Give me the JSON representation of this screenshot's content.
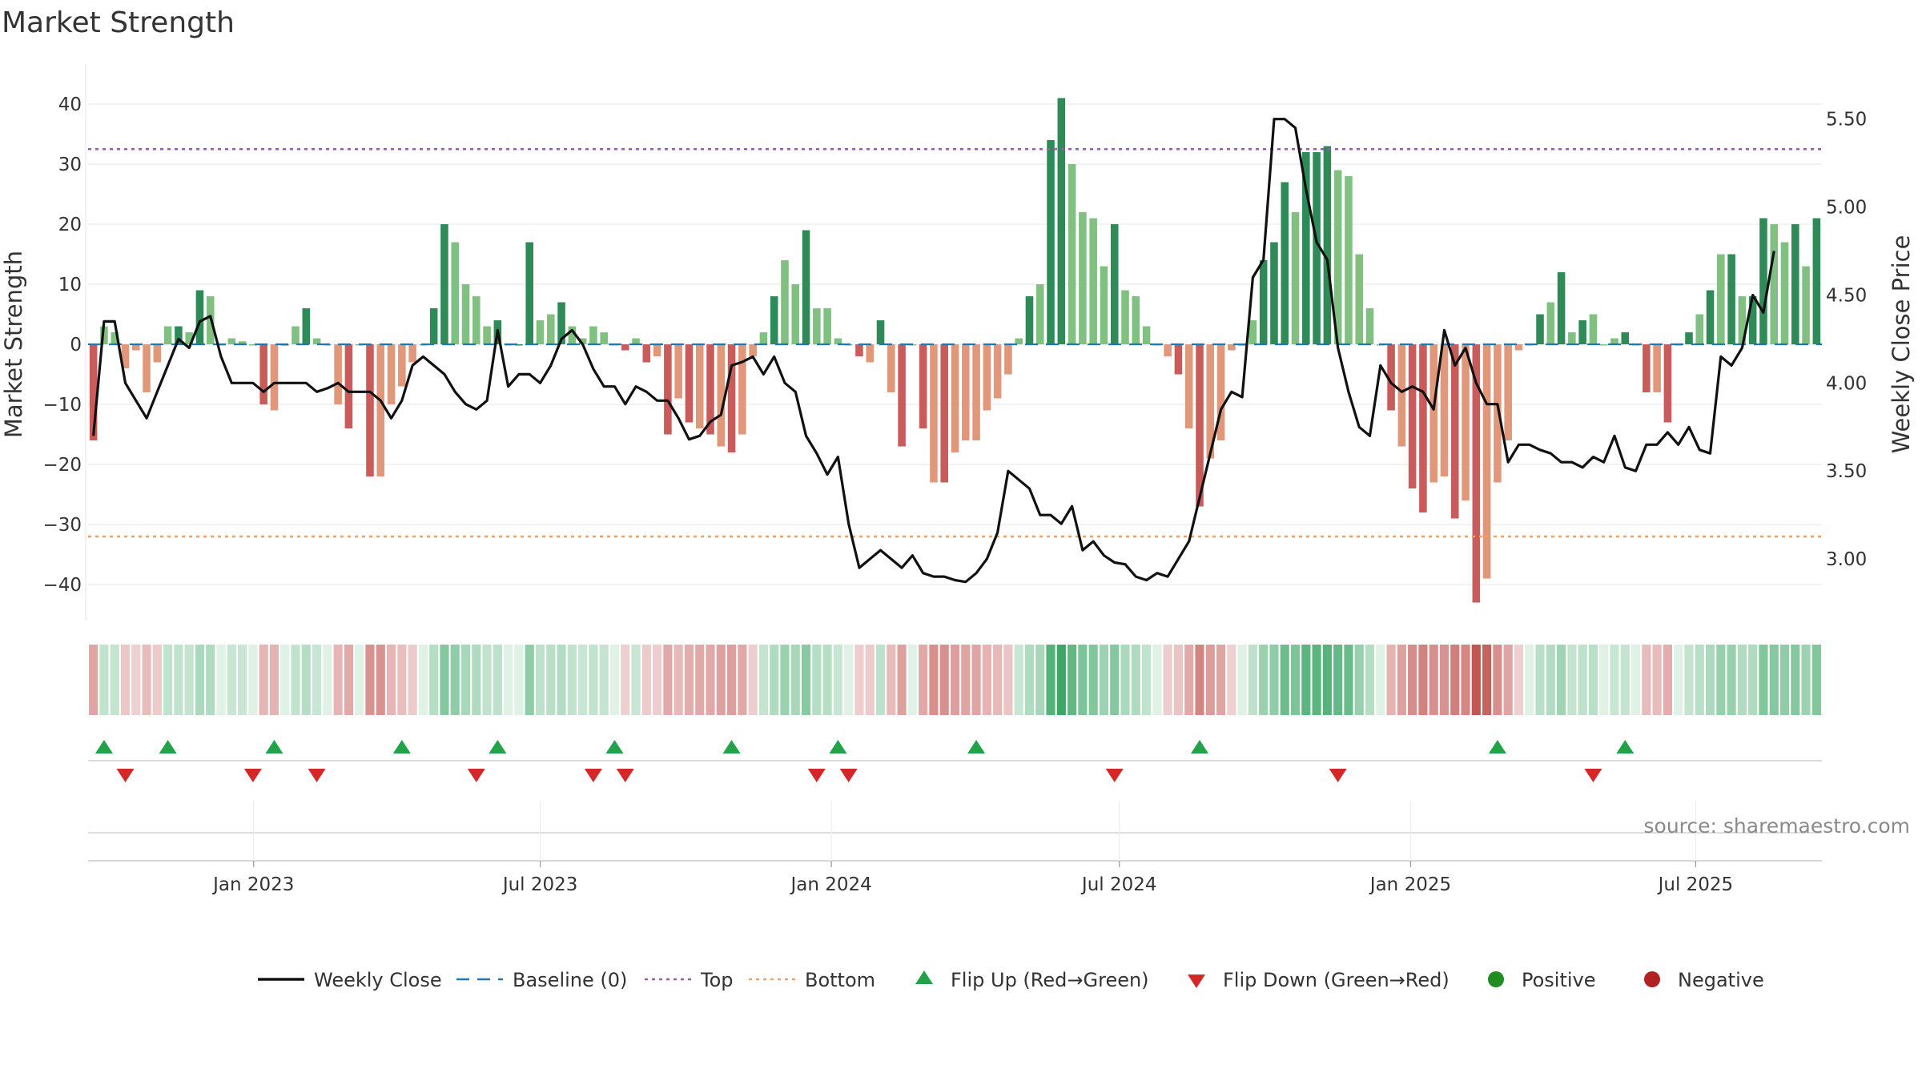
{
  "chart_data": {
    "type": "bar",
    "title": "Market Strength",
    "source": "source: sharemaestro.com",
    "ylabel": "Market Strength",
    "y2label": "Weekly Close Price",
    "ylim": [
      -46,
      46
    ],
    "y2lim": [
      2.65,
      5.79
    ],
    "yticks": [
      "40",
      "30",
      "20",
      "10",
      "0",
      "−10",
      "−20",
      "−30",
      "−40"
    ],
    "y2ticks": [
      "5.50",
      "5.00",
      "4.50",
      "4.00",
      "3.50",
      "3.00"
    ],
    "xticks": [
      "Jan 2023",
      "Jul 2023",
      "Jan 2024",
      "Jul 2024",
      "Jan 2025",
      "Jul 2025"
    ],
    "top_level": 32.5,
    "bottom_level": -32,
    "baseline": 0,
    "colors": {
      "strong_pos": "#2e8b57",
      "weak_pos": "#80c080",
      "strong_neg": "#c95b5b",
      "weak_neg": "#e0977a",
      "line": "#111111",
      "top": "#9b59b6",
      "bottom": "#f0a060",
      "baseline": "#1f77b4",
      "flip_up": "#22a34a",
      "flip_down": "#d62728",
      "positive": "#228b22",
      "negative": "#b22222"
    },
    "series": [
      {
        "name": "Market Strength",
        "values": [
          -16,
          3,
          2,
          -4,
          -1,
          -8,
          -3,
          3,
          3,
          2,
          9,
          8,
          0,
          1,
          0.5,
          0,
          -10,
          -11,
          0,
          3,
          6,
          1,
          0,
          -10,
          -14,
          0,
          -22,
          -22,
          -10,
          -7,
          -3,
          0,
          6,
          20,
          17,
          10,
          8,
          3,
          4,
          0,
          0,
          17,
          4,
          5,
          7,
          3,
          1,
          3,
          2,
          0,
          -1,
          1,
          -3,
          -2,
          -15,
          -9,
          -13,
          -14,
          -15,
          -17,
          -18,
          -15,
          -2,
          2,
          8,
          14,
          10,
          19,
          6,
          6,
          1,
          0,
          -2,
          -3,
          4,
          -8,
          -17,
          0,
          -14,
          -23,
          -23,
          -18,
          -16,
          -16,
          -11,
          -9,
          -5,
          1,
          8,
          10,
          34,
          41,
          30,
          22,
          21,
          13,
          20,
          9,
          8,
          3,
          0,
          -2,
          -5,
          -14,
          -27,
          -19,
          -16,
          -1,
          0,
          4,
          14,
          17,
          27,
          22,
          32,
          32,
          33,
          29,
          28,
          15,
          6,
          0,
          -11,
          -17,
          -24,
          -28,
          -23,
          -22,
          -29,
          -26,
          -43,
          -39,
          -23,
          -16,
          -1,
          0,
          5,
          7,
          12,
          2,
          4,
          5,
          0,
          1,
          2,
          0,
          -8,
          -8,
          -13,
          0,
          2,
          5,
          9,
          15,
          15,
          8,
          8,
          21,
          20,
          17,
          20,
          13,
          21
        ]
      },
      {
        "name": "Weekly Close",
        "values": [
          3.7,
          4.35,
          4.35,
          4.0,
          3.9,
          3.8,
          3.95,
          4.1,
          4.25,
          4.2,
          4.35,
          4.38,
          4.15,
          4.0,
          4.0,
          4.0,
          3.95,
          4.0,
          4.0,
          4.0,
          4.0,
          3.95,
          3.97,
          4.0,
          3.95,
          3.95,
          3.95,
          3.9,
          3.8,
          3.9,
          4.1,
          4.15,
          4.1,
          4.05,
          3.95,
          3.88,
          3.85,
          3.9,
          4.3,
          3.98,
          4.05,
          4.05,
          4.0,
          4.1,
          4.25,
          4.3,
          4.22,
          4.08,
          3.98,
          3.98,
          3.88,
          3.98,
          3.95,
          3.9,
          3.9,
          3.8,
          3.68,
          3.7,
          3.78,
          3.82,
          4.1,
          4.12,
          4.15,
          4.05,
          4.15,
          4.0,
          3.95,
          3.7,
          3.6,
          3.48,
          3.58,
          3.2,
          2.95,
          3.0,
          3.05,
          3.0,
          2.95,
          3.02,
          2.92,
          2.9,
          2.9,
          2.88,
          2.87,
          2.92,
          3.0,
          3.15,
          3.5,
          3.45,
          3.4,
          3.25,
          3.25,
          3.2,
          3.3,
          3.05,
          3.1,
          3.02,
          2.98,
          2.97,
          2.9,
          2.88,
          2.92,
          2.9,
          3.0,
          3.1,
          3.35,
          3.6,
          3.85,
          3.95,
          3.92,
          4.6,
          4.7,
          5.5,
          5.5,
          5.45,
          5.1,
          4.8,
          4.7,
          4.2,
          3.95,
          3.75,
          3.7,
          4.1,
          4.0,
          3.95,
          3.98,
          3.95,
          3.85,
          4.3,
          4.1,
          4.2,
          4.0,
          3.88,
          3.88,
          3.55,
          3.65,
          3.65,
          3.62,
          3.6,
          3.55,
          3.55,
          3.52,
          3.58,
          3.55,
          3.7,
          3.52,
          3.5,
          3.65,
          3.65,
          3.72,
          3.65,
          3.75,
          3.62,
          3.6,
          4.15,
          4.1,
          4.2,
          4.5,
          4.4,
          4.75
        ]
      }
    ],
    "flip_up": [
      1,
      7,
      17,
      29,
      38,
      49,
      60,
      70,
      83,
      104,
      132,
      144
    ],
    "flip_down": [
      3,
      15,
      21,
      36,
      47,
      50,
      68,
      71,
      96,
      117,
      141
    ],
    "legend": [
      {
        "key": "line",
        "label": "Weekly Close"
      },
      {
        "key": "baseline",
        "label": "Baseline (0)"
      },
      {
        "key": "top",
        "label": "Top"
      },
      {
        "key": "bottom",
        "label": "Bottom"
      },
      {
        "key": "flip_up",
        "label": "Flip Up (Red→Green)"
      },
      {
        "key": "flip_down",
        "label": "Flip Down (Green→Red)"
      },
      {
        "key": "positive",
        "label": "Positive"
      },
      {
        "key": "negative",
        "label": "Negative"
      }
    ]
  }
}
